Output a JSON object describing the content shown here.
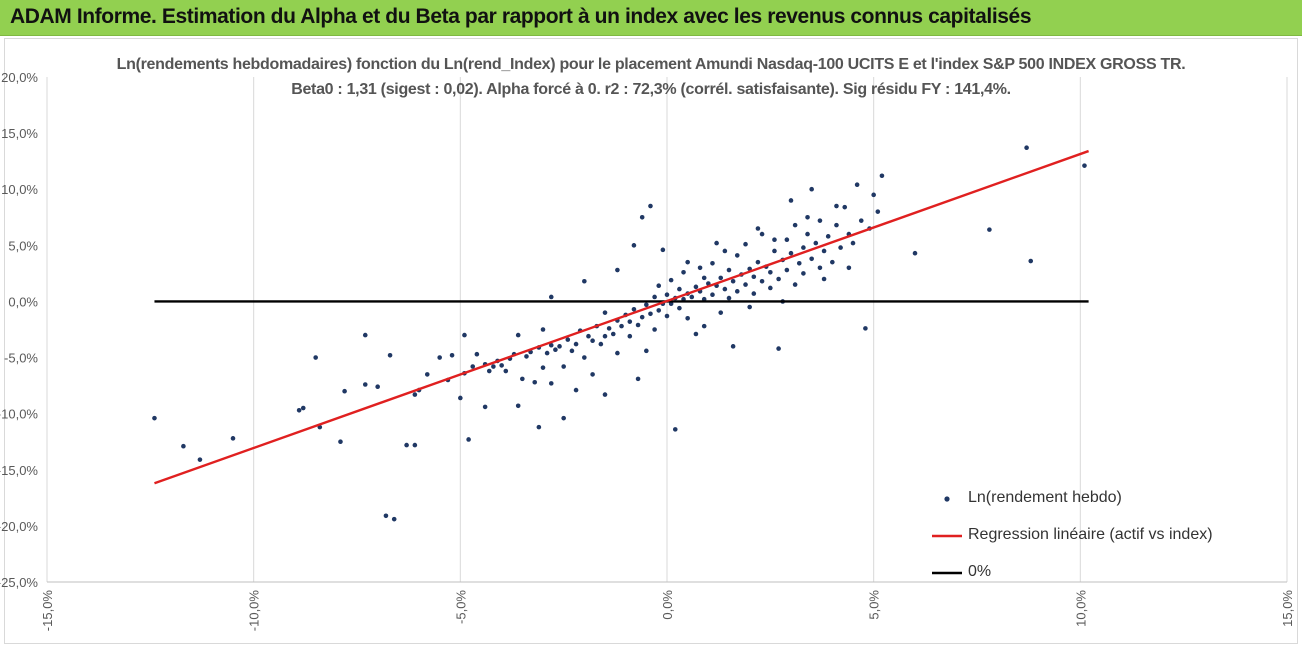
{
  "banner": {
    "title": "ADAM Informe. Estimation du Alpha et du Beta par rapport à un index avec les revenus connus capitalisés"
  },
  "colors": {
    "banner": "#92d050",
    "points": "#203864",
    "regression": "#e02020",
    "zero_line": "#000000",
    "grid": "#d9d9d9"
  },
  "chart_data": {
    "type": "scatter",
    "title": "Ln(rendements hebdomadaires) fonction du Ln(rend_Index) pour le placement Amundi Nasdaq-100 UCITS E et l'index S&P 500 INDEX GROSS TR.",
    "subtitle": "Beta0 : 1,31  (sigest : 0,02).  Alpha forcé à 0. r2 : 72,3% (corrél. satisfaisante). Sig résidu FY : 141,4%.",
    "xlim": [
      -0.15,
      0.15
    ],
    "ylim": [
      -0.25,
      0.2
    ],
    "x_ticks": [
      "-15,0%",
      "-10,0%",
      "-5,0%",
      "0,0%",
      "5,0%",
      "10,0%",
      "15,0%"
    ],
    "y_ticks": [
      "20,0%",
      "15,0%",
      "10,0%",
      "5,0%",
      "0,0%",
      "-5,0%",
      "-10,0%",
      "-15,0%",
      "-20,0%",
      "-25,0%"
    ],
    "grid": "vertical",
    "legend_position": "bottom-right",
    "series": [
      {
        "name": "Ln(rendement hebdo)",
        "kind": "scatter",
        "points": [
          [
            -0.124,
            -0.104
          ],
          [
            -0.117,
            -0.129
          ],
          [
            -0.113,
            -0.141
          ],
          [
            -0.105,
            -0.122
          ],
          [
            -0.089,
            -0.097
          ],
          [
            -0.088,
            -0.095
          ],
          [
            -0.085,
            -0.05
          ],
          [
            -0.084,
            -0.112
          ],
          [
            -0.079,
            -0.125
          ],
          [
            -0.078,
            -0.08
          ],
          [
            -0.073,
            -0.03
          ],
          [
            -0.073,
            -0.074
          ],
          [
            -0.07,
            -0.076
          ],
          [
            -0.068,
            -0.191
          ],
          [
            -0.067,
            -0.048
          ],
          [
            -0.066,
            -0.194
          ],
          [
            -0.063,
            -0.128
          ],
          [
            -0.061,
            -0.128
          ],
          [
            -0.061,
            -0.083
          ],
          [
            -0.06,
            -0.079
          ],
          [
            -0.058,
            -0.065
          ],
          [
            -0.055,
            -0.05
          ],
          [
            -0.053,
            -0.07
          ],
          [
            -0.052,
            -0.048
          ],
          [
            -0.05,
            -0.086
          ],
          [
            -0.049,
            -0.064
          ],
          [
            -0.049,
            -0.03
          ],
          [
            -0.048,
            -0.123
          ],
          [
            -0.047,
            -0.058
          ],
          [
            -0.046,
            -0.047
          ],
          [
            -0.044,
            -0.056
          ],
          [
            -0.044,
            -0.094
          ],
          [
            -0.043,
            -0.062
          ],
          [
            -0.042,
            -0.058
          ],
          [
            -0.041,
            -0.053
          ],
          [
            -0.04,
            -0.057
          ],
          [
            -0.039,
            -0.062
          ],
          [
            -0.038,
            -0.051
          ],
          [
            -0.037,
            -0.047
          ],
          [
            -0.036,
            -0.093
          ],
          [
            -0.035,
            -0.069
          ],
          [
            -0.034,
            -0.049
          ],
          [
            -0.033,
            -0.045
          ],
          [
            -0.032,
            -0.072
          ],
          [
            -0.031,
            -0.041
          ],
          [
            -0.031,
            -0.112
          ],
          [
            -0.03,
            -0.059
          ],
          [
            -0.029,
            -0.046
          ],
          [
            -0.028,
            -0.039
          ],
          [
            -0.028,
            -0.073
          ],
          [
            -0.027,
            -0.043
          ],
          [
            -0.026,
            -0.04
          ],
          [
            -0.025,
            -0.104
          ],
          [
            -0.025,
            -0.058
          ],
          [
            -0.024,
            -0.034
          ],
          [
            -0.023,
            -0.044
          ],
          [
            -0.022,
            -0.038
          ],
          [
            -0.022,
            -0.079
          ],
          [
            -0.021,
            -0.026
          ],
          [
            -0.02,
            -0.05
          ],
          [
            -0.019,
            -0.031
          ],
          [
            -0.018,
            -0.035
          ],
          [
            -0.018,
            -0.065
          ],
          [
            -0.017,
            -0.022
          ],
          [
            -0.016,
            -0.038
          ],
          [
            -0.015,
            -0.031
          ],
          [
            -0.015,
            -0.083
          ],
          [
            -0.014,
            -0.024
          ],
          [
            -0.013,
            -0.029
          ],
          [
            -0.012,
            -0.017
          ],
          [
            -0.012,
            -0.046
          ],
          [
            -0.011,
            -0.022
          ],
          [
            -0.01,
            -0.012
          ],
          [
            -0.009,
            -0.031
          ],
          [
            -0.009,
            -0.018
          ],
          [
            -0.008,
            -0.007
          ],
          [
            -0.007,
            -0.021
          ],
          [
            -0.007,
            -0.069
          ],
          [
            -0.006,
            -0.014
          ],
          [
            -0.005,
            -0.003
          ],
          [
            -0.005,
            -0.044
          ],
          [
            -0.004,
            -0.011
          ],
          [
            -0.003,
            0.004
          ],
          [
            -0.003,
            -0.025
          ],
          [
            -0.002,
            -0.008
          ],
          [
            -0.002,
            0.014
          ],
          [
            -0.001,
            -0.002
          ],
          [
            0.0,
            -0.013
          ],
          [
            0.0,
            0.006
          ],
          [
            0.001,
            -0.002
          ],
          [
            0.001,
            0.019
          ],
          [
            0.002,
            0.003
          ],
          [
            0.002,
            -0.114
          ],
          [
            0.003,
            -0.006
          ],
          [
            0.003,
            0.011
          ],
          [
            0.004,
            0.002
          ],
          [
            0.004,
            0.026
          ],
          [
            0.005,
            0.007
          ],
          [
            0.005,
            -0.015
          ],
          [
            0.006,
            0.004
          ],
          [
            0.007,
            0.013
          ],
          [
            0.007,
            -0.029
          ],
          [
            0.008,
            0.009
          ],
          [
            0.009,
            0.021
          ],
          [
            0.009,
            0.002
          ],
          [
            0.01,
            0.016
          ],
          [
            0.011,
            0.006
          ],
          [
            0.011,
            0.034
          ],
          [
            0.012,
            0.014
          ],
          [
            0.013,
            -0.01
          ],
          [
            0.013,
            0.021
          ],
          [
            0.014,
            0.011
          ],
          [
            0.015,
            0.028
          ],
          [
            0.015,
            0.003
          ],
          [
            0.016,
            0.018
          ],
          [
            0.017,
            0.041
          ],
          [
            0.017,
            0.009
          ],
          [
            0.018,
            0.024
          ],
          [
            0.019,
            0.015
          ],
          [
            0.019,
            0.051
          ],
          [
            0.02,
            0.029
          ],
          [
            0.021,
            0.007
          ],
          [
            0.021,
            0.022
          ],
          [
            0.022,
            0.035
          ],
          [
            0.023,
            0.018
          ],
          [
            0.023,
            0.06
          ],
          [
            0.024,
            0.031
          ],
          [
            0.025,
            0.012
          ],
          [
            0.025,
            0.026
          ],
          [
            0.026,
            0.045
          ],
          [
            0.027,
            0.02
          ],
          [
            0.027,
            -0.042
          ],
          [
            0.028,
            0.037
          ],
          [
            0.029,
            0.055
          ],
          [
            0.029,
            0.028
          ],
          [
            0.03,
            0.043
          ],
          [
            0.031,
            0.015
          ],
          [
            0.031,
            0.068
          ],
          [
            0.032,
            0.034
          ],
          [
            0.033,
            0.048
          ],
          [
            0.033,
            0.025
          ],
          [
            0.034,
            0.06
          ],
          [
            0.035,
            0.038
          ],
          [
            0.035,
            0.1
          ],
          [
            0.036,
            0.052
          ],
          [
            0.037,
            0.03
          ],
          [
            0.037,
            0.072
          ],
          [
            0.038,
            0.045
          ],
          [
            0.039,
            0.058
          ],
          [
            0.04,
            0.035
          ],
          [
            0.041,
            0.068
          ],
          [
            0.042,
            0.048
          ],
          [
            0.043,
            0.084
          ],
          [
            0.044,
            0.06
          ],
          [
            0.045,
            0.052
          ],
          [
            0.046,
            0.104
          ],
          [
            0.047,
            0.072
          ],
          [
            0.048,
            -0.024
          ],
          [
            0.049,
            0.065
          ],
          [
            0.05,
            0.095
          ],
          [
            0.051,
            0.08
          ],
          [
            0.052,
            0.112
          ],
          [
            0.06,
            0.043
          ],
          [
            0.078,
            0.064
          ],
          [
            0.087,
            0.137
          ],
          [
            0.088,
            0.036
          ],
          [
            0.101,
            0.121
          ],
          [
            -0.004,
            0.085
          ],
          [
            -0.006,
            0.075
          ],
          [
            0.012,
            0.052
          ],
          [
            0.022,
            0.065
          ],
          [
            0.03,
            0.09
          ],
          [
            0.016,
            -0.04
          ],
          [
            -0.008,
            0.05
          ],
          [
            -0.001,
            0.046
          ],
          [
            0.008,
            0.03
          ],
          [
            -0.012,
            0.028
          ],
          [
            -0.02,
            0.018
          ],
          [
            -0.028,
            0.004
          ],
          [
            0.02,
            -0.005
          ],
          [
            0.009,
            -0.022
          ],
          [
            0.028,
            0.0
          ],
          [
            0.038,
            0.02
          ],
          [
            0.044,
            0.03
          ],
          [
            -0.015,
            -0.01
          ],
          [
            -0.03,
            -0.025
          ],
          [
            -0.036,
            -0.03
          ],
          [
            0.005,
            0.035
          ],
          [
            0.014,
            0.045
          ],
          [
            0.026,
            0.055
          ],
          [
            0.034,
            0.075
          ],
          [
            0.041,
            0.085
          ]
        ]
      },
      {
        "name": "Regression linéaire (actif vs index)",
        "kind": "line",
        "points": [
          [
            -0.124,
            -0.162
          ],
          [
            0.102,
            0.134
          ]
        ]
      },
      {
        "name": "0%",
        "kind": "line",
        "points": [
          [
            -0.124,
            0.0
          ],
          [
            0.102,
            0.0
          ]
        ]
      }
    ]
  }
}
